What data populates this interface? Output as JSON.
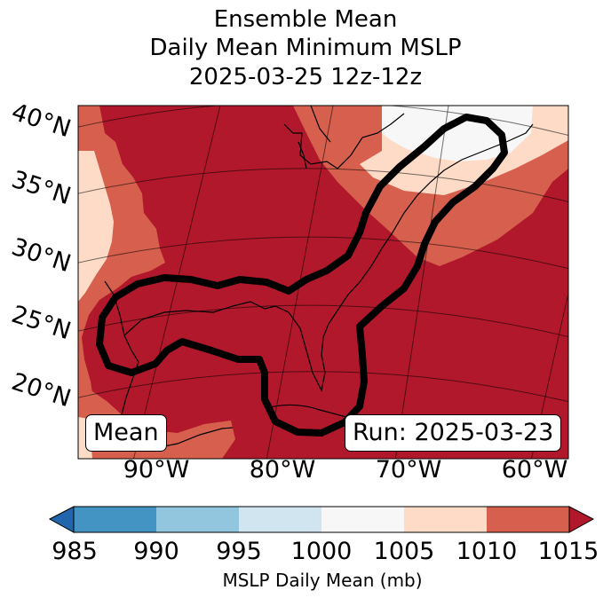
{
  "title": {
    "line1": "Ensemble Mean",
    "line2": "Daily Mean Minimum MSLP",
    "line3": "2025-03-25 12z-12z"
  },
  "map": {
    "lat_labels": [
      "40°N",
      "35°N",
      "30°N",
      "25°N",
      "20°N"
    ],
    "lon_labels": [
      "90°W",
      "80°W",
      "70°W",
      "60°W"
    ],
    "mean_label": "Mean",
    "run_label": "Run: 2025-03-23",
    "colors": {
      "land_line": "#000000",
      "contour": "#000000",
      "c1015": "#b2182b",
      "c1010": "#d6604d",
      "c1005": "#fddbc7",
      "c1000": "#f7f7f7",
      "c995": "#d1e5f0",
      "c990": "#92c5de",
      "c985": "#4393c3",
      "below": "#2166ac"
    }
  },
  "colorbar": {
    "ticks": [
      "985",
      "990",
      "995",
      "1000",
      "1005",
      "1010",
      "1015"
    ],
    "label": "MSLP Daily Mean (mb)",
    "colors": [
      "#4393c3",
      "#92c5de",
      "#d1e5f0",
      "#f7f7f7",
      "#fddbc7",
      "#d6604d"
    ],
    "under_color": "#2166ac",
    "over_color": "#b2182b"
  }
}
